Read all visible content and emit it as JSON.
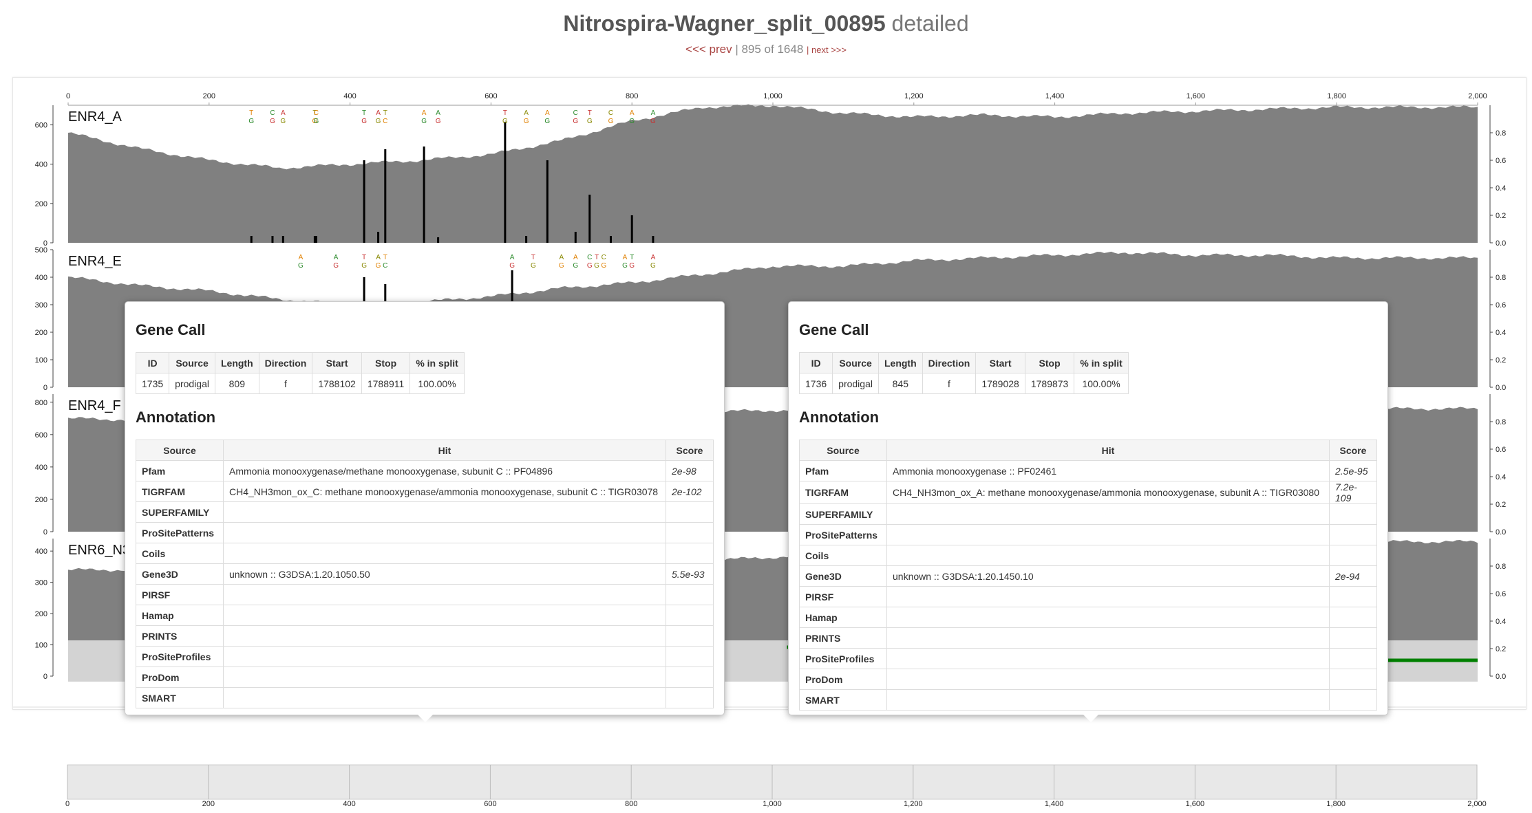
{
  "header": {
    "title_bold": "Nitrospira-Wagner_split_00895",
    "title_light": "detailed",
    "prev": "<<< prev",
    "position": "| 895 of 1648",
    "next": "| next >>>"
  },
  "axis_ticks": [
    "0",
    "200",
    "400",
    "600",
    "800",
    "1,000",
    "1,200",
    "1,400",
    "1,600",
    "1,800",
    "2,000"
  ],
  "samples": [
    {
      "name": "ENR4_A",
      "left_ticks": [
        "0",
        "200",
        "400",
        "600"
      ],
      "right_ticks": [
        "0.0",
        "0.2",
        "0.4",
        "0.6",
        "0.8"
      ],
      "left_max": 700,
      "coverage_trend": [
        560,
        480,
        420,
        380,
        400,
        420,
        450,
        520,
        620,
        690,
        700,
        660,
        640,
        650,
        640,
        660,
        670,
        680,
        690,
        690,
        690
      ],
      "variant_positions": [
        260,
        290,
        305,
        350,
        352,
        420,
        440,
        450,
        505,
        525,
        620,
        650,
        680,
        720,
        740,
        770,
        800,
        830
      ],
      "variant_heights": [
        0.05,
        0.05,
        0.05,
        0.05,
        0.05,
        0.6,
        0.08,
        0.68,
        0.7,
        0.04,
        0.88,
        0.05,
        0.6,
        0.08,
        0.35,
        0.05,
        0.2,
        0.05
      ],
      "top_letters": [
        "T G",
        "C G",
        "A G",
        "T G",
        "C G",
        "T G",
        "A G",
        "T C",
        "A G",
        "A G",
        "T G",
        "A G",
        "A G",
        "C G",
        "T G",
        "C G",
        "A G",
        "A G"
      ]
    },
    {
      "name": "ENR4_E",
      "left_ticks": [
        "0",
        "100",
        "200",
        "300",
        "400",
        "500"
      ],
      "right_ticks": [
        "0.0",
        "0.2",
        "0.4",
        "0.6",
        "0.8"
      ],
      "left_max": 500,
      "coverage_trend": [
        400,
        370,
        350,
        320,
        300,
        310,
        330,
        360,
        380,
        410,
        440,
        440,
        460,
        470,
        480,
        490,
        480,
        480,
        470,
        470,
        470
      ],
      "variant_positions": [
        330,
        380,
        420,
        440,
        450,
        630,
        660,
        700,
        720,
        740,
        750,
        760,
        790,
        800,
        830
      ],
      "variant_heights": [
        0.05,
        0.05,
        0.8,
        0.08,
        0.75,
        0.85,
        0.05,
        0.05,
        0.05,
        0.05,
        0.05,
        0.05,
        0.05,
        0.05,
        0.05
      ],
      "top_letters": [
        "A G",
        "A G",
        "T G",
        "A G",
        "T C",
        "A G",
        "T G",
        "A G",
        "A G",
        "C G",
        "T G",
        "C G",
        "A G",
        "T G",
        "A G"
      ]
    },
    {
      "name": "ENR4_F",
      "left_ticks": [
        "0",
        "200",
        "400",
        "600",
        "800"
      ],
      "right_ticks": [
        "0.0",
        "0.2",
        "0.4",
        "0.6",
        "0.8"
      ],
      "left_max": 850,
      "coverage_trend": [
        700,
        690,
        680,
        670,
        680,
        690,
        700,
        720,
        730,
        740,
        750,
        740,
        730,
        740,
        750,
        760,
        760,
        760,
        760,
        760,
        760
      ],
      "variant_positions": [],
      "variant_heights": [],
      "top_letters": []
    },
    {
      "name": "ENR6_N3",
      "left_ticks": [
        "0",
        "100",
        "200",
        "300",
        "400"
      ],
      "right_ticks": [
        "0.0",
        "0.2",
        "0.4",
        "0.6",
        "0.8"
      ],
      "left_max": 440,
      "coverage_trend": [
        340,
        340,
        345,
        345,
        350,
        350,
        355,
        360,
        360,
        370,
        380,
        390,
        400,
        410,
        410,
        420,
        420,
        420,
        430,
        430,
        430
      ],
      "variant_positions": [],
      "variant_heights": [],
      "top_letters": []
    }
  ],
  "genes": [
    {
      "start_frac": 0.055,
      "end_frac": 0.455,
      "color": "#008000"
    },
    {
      "start_frac": 0.51,
      "end_frac": 0.935,
      "color": "#008000"
    },
    {
      "start_frac": 0.935,
      "end_frac": 1.0,
      "color": "#008000"
    }
  ],
  "popups": [
    {
      "gene_call_heading": "Gene Call",
      "gene_call_headers": [
        "ID",
        "Source",
        "Length",
        "Direction",
        "Start",
        "Stop",
        "% in split"
      ],
      "gene_call_values": [
        "1735",
        "prodigal",
        "809",
        "f",
        "1788102",
        "1788911",
        "100.00%"
      ],
      "annotation_heading": "Annotation",
      "annotation_headers": [
        "Source",
        "Hit",
        "Score"
      ],
      "annotations": [
        [
          "Pfam",
          "Ammonia monooxygenase/methane monooxygenase, subunit C :: PF04896",
          "2e-98"
        ],
        [
          "TIGRFAM",
          "CH4_NH3mon_ox_C: methane monooxygenase/ammonia monooxygenase, subunit C :: TIGR03078",
          "2e-102"
        ],
        [
          "SUPERFAMILY",
          "",
          ""
        ],
        [
          "ProSitePatterns",
          "",
          ""
        ],
        [
          "Coils",
          "",
          ""
        ],
        [
          "Gene3D",
          "unknown :: G3DSA:1.20.1050.50",
          "5.5e-93"
        ],
        [
          "PIRSF",
          "",
          ""
        ],
        [
          "Hamap",
          "",
          ""
        ],
        [
          "PRINTS",
          "",
          ""
        ],
        [
          "ProSiteProfiles",
          "",
          ""
        ],
        [
          "ProDom",
          "",
          ""
        ],
        [
          "SMART",
          "",
          ""
        ]
      ]
    },
    {
      "gene_call_heading": "Gene Call",
      "gene_call_headers": [
        "ID",
        "Source",
        "Length",
        "Direction",
        "Start",
        "Stop",
        "% in split"
      ],
      "gene_call_values": [
        "1736",
        "prodigal",
        "845",
        "f",
        "1789028",
        "1789873",
        "100.00%"
      ],
      "annotation_heading": "Annotation",
      "annotation_headers": [
        "Source",
        "Hit",
        "Score"
      ],
      "annotations": [
        [
          "Pfam",
          "Ammonia monooxygenase :: PF02461",
          "2.5e-95"
        ],
        [
          "TIGRFAM",
          "CH4_NH3mon_ox_A: methane monooxygenase/ammonia monooxygenase, subunit A :: TIGR03080",
          "7.2e-109"
        ],
        [
          "SUPERFAMILY",
          "",
          ""
        ],
        [
          "ProSitePatterns",
          "",
          ""
        ],
        [
          "Coils",
          "",
          ""
        ],
        [
          "Gene3D",
          "unknown :: G3DSA:1.20.1450.10",
          "2e-94"
        ],
        [
          "PIRSF",
          "",
          ""
        ],
        [
          "Hamap",
          "",
          ""
        ],
        [
          "PRINTS",
          "",
          ""
        ],
        [
          "ProSiteProfiles",
          "",
          ""
        ],
        [
          "ProDom",
          "",
          ""
        ],
        [
          "SMART",
          "",
          ""
        ]
      ]
    }
  ],
  "colors": {
    "coverage": "#808080",
    "gene": "#008000",
    "variant": "#000000",
    "track_bg": "#d3d3d3",
    "bottom_bg": "#e8e8e8"
  }
}
